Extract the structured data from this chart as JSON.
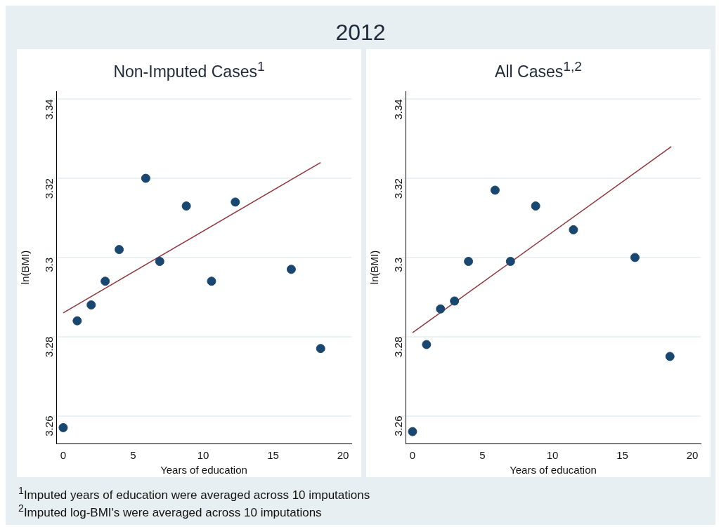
{
  "chart_data": [
    {
      "type": "other",
      "title": "2012"
    },
    {
      "type": "scatter",
      "title": "Non-Imputed Cases$^{1}$",
      "xlabel": "Years of education",
      "ylabel": "ln(BMI)",
      "xlim": [
        -0.5,
        20.6
      ],
      "xticks": [
        0,
        5,
        10,
        15,
        20
      ],
      "ylim": [
        3.253,
        3.342
      ],
      "yticks": [
        3.26,
        3.28,
        3.3,
        3.32,
        3.34
      ],
      "grid": "y",
      "series": [
        {
          "type": "scatter",
          "marker": "circle",
          "color": "#1a476f",
          "x": [
            0,
            1,
            2,
            3,
            4,
            5.9,
            6.9,
            8.8,
            10.6,
            12.3,
            16.3,
            18.4
          ],
          "values": [
            3.257,
            3.284,
            3.288,
            3.294,
            3.302,
            3.32,
            3.299,
            3.313,
            3.294,
            3.314,
            3.297,
            3.277
          ]
        },
        {
          "type": "line",
          "color": "#90353b",
          "x": [
            0,
            18.4
          ],
          "values": [
            3.286,
            3.324
          ]
        }
      ]
    },
    {
      "type": "scatter",
      "title": "All Cases$^{1,2}$",
      "xlabel": "Years of education",
      "ylabel": "ln(BMI)",
      "xlim": [
        -0.5,
        20.6
      ],
      "xticks": [
        0,
        5,
        10,
        15,
        20
      ],
      "ylim": [
        3.253,
        3.342
      ],
      "yticks": [
        3.26,
        3.28,
        3.3,
        3.32,
        3.34
      ],
      "grid": "y",
      "series": [
        {
          "type": "scatter",
          "marker": "circle",
          "color": "#1a476f",
          "x": [
            0,
            1,
            2,
            3,
            4,
            5.9,
            7,
            8.8,
            11.5,
            15.9,
            18.4
          ],
          "values": [
            3.256,
            3.278,
            3.287,
            3.289,
            3.299,
            3.317,
            3.299,
            3.313,
            3.307,
            3.3,
            3.275
          ]
        },
        {
          "type": "line",
          "color": "#90353b",
          "x": [
            0,
            18.5
          ],
          "values": [
            3.281,
            3.328
          ]
        }
      ]
    },
    {
      "type": "other",
      "annotations": [
        "$^{1}$Imputed years of education were averaged across 10 imputations",
        "$^{2}$Imputed log-BMI's were averaged across 10 imputations"
      ]
    }
  ]
}
